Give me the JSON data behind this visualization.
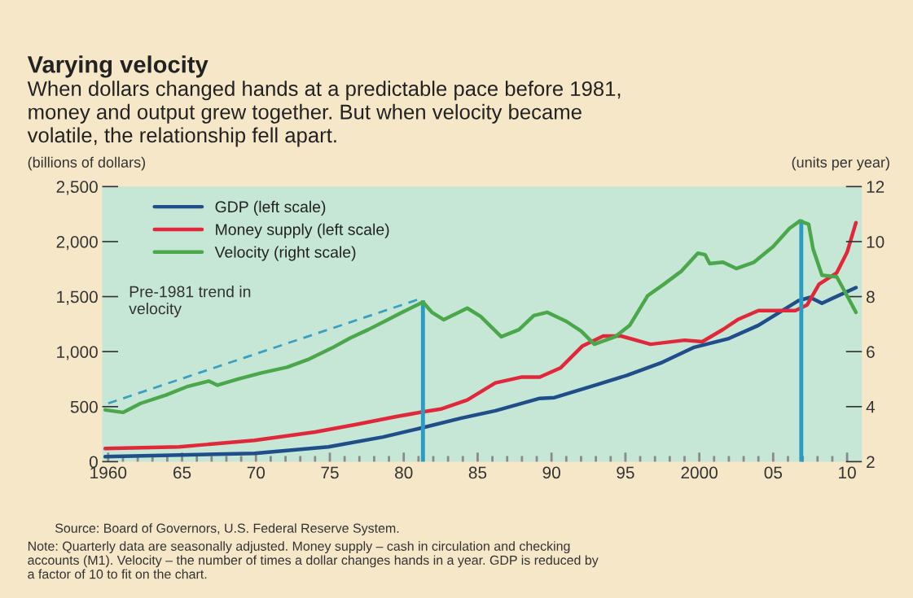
{
  "chart_data": {
    "type": "line",
    "title": "Varying velocity",
    "subtitle": "When dollars changed hands at a predictable pace before 1981,\nmoney and output grew together. But when velocity became\nvolatile, the relationship fell apart.",
    "ylabel": "(billions of dollars)",
    "y2label": "(units per year)",
    "series": [
      {
        "name": "GDP (left scale)",
        "color": "#1f4e8a",
        "x": [
          1959.8,
          1969.9,
          1974.9,
          1978.6,
          1981.2,
          1983.9,
          1986.2,
          1989.2,
          1990.2,
          1993.1,
          1995.1,
          1997.5,
          1999.6,
          2002.0,
          2004.0,
          2006.7,
          2007.5,
          2008.3,
          2010.6
        ],
        "values": [
          45,
          75,
          134,
          224,
          306,
          396,
          463,
          575,
          582,
          701,
          784,
          903,
          1037,
          1119,
          1239,
          1463,
          1493,
          1440,
          1582
        ]
      },
      {
        "name": "Money supply (left scale)",
        "color": "#e0283a",
        "x": [
          1959.8,
          1964.8,
          1969.9,
          1974.0,
          1976.7,
          1979.5,
          1981.2,
          1982.5,
          1984.3,
          1986.2,
          1988.0,
          1989.2,
          1990.6,
          1992.1,
          1993.5,
          1994.7,
          1996.7,
          1999.0,
          2000.2,
          2001.6,
          2002.6,
          2004.0,
          2006.5,
          2007.3,
          2008.1,
          2009.3,
          2010.0,
          2010.6
        ],
        "values": [
          119,
          134,
          194,
          269,
          336,
          410,
          450,
          478,
          560,
          716,
          769,
          769,
          851,
          1052,
          1142,
          1142,
          1067,
          1104,
          1090,
          1201,
          1291,
          1373,
          1373,
          1425,
          1612,
          1716,
          1903,
          2172
        ]
      },
      {
        "name": "Velocity (right scale)",
        "color": "#4aa84a",
        "axis": "y2",
        "x": [
          1959.8,
          1961.0,
          1962.2,
          1963.9,
          1965.3,
          1966.8,
          1967.4,
          1968.8,
          1970.3,
          1972.1,
          1973.6,
          1975.1,
          1976.4,
          1977.6,
          1978.7,
          1979.8,
          1980.8,
          1981.3,
          1981.9,
          1982.7,
          1984.3,
          1985.2,
          1986.6,
          1987.8,
          1988.8,
          1989.7,
          1991.0,
          1992.0,
          1992.9,
          1994.3,
          1995.3,
          1996.5,
          1997.6,
          1998.8,
          1999.9,
          2000.4,
          2000.7,
          2001.6,
          2002.5,
          2003.7,
          2005.0,
          2006.1,
          2006.8,
          2007.4,
          2007.7,
          2008.3,
          2009.3,
          2010.0,
          2010.6
        ],
        "values": [
          3.88,
          3.79,
          4.12,
          4.42,
          4.72,
          4.93,
          4.78,
          5.0,
          5.22,
          5.43,
          5.73,
          6.12,
          6.5,
          6.8,
          7.1,
          7.4,
          7.67,
          7.8,
          7.43,
          7.16,
          7.58,
          7.28,
          6.54,
          6.8,
          7.31,
          7.43,
          7.1,
          6.75,
          6.27,
          6.54,
          6.96,
          8.03,
          8.45,
          8.93,
          9.58,
          9.52,
          9.2,
          9.25,
          9.02,
          9.25,
          9.82,
          10.48,
          10.75,
          10.63,
          9.73,
          8.78,
          8.72,
          8.03,
          7.43
        ]
      },
      {
        "type": "line",
        "color": "#3a9fc0",
        "axis": "y2",
        "line_style": "dashed",
        "x": [
          1960,
          1981
        ],
        "values": [
          4.12,
          7.9
        ]
      }
    ],
    "ref_lines": [
      {
        "axis": "x",
        "value": 1981.3,
        "color": "#2a9bc4"
      },
      {
        "axis": "x",
        "value": 2006.9,
        "color": "#2a9bc4"
      }
    ],
    "xlim": [
      1959.6,
      2011
    ],
    "xticks": [
      {
        "value": 1960,
        "label": "1960"
      },
      {
        "value": 1961,
        "label": null
      },
      {
        "value": 1962,
        "label": null
      },
      {
        "value": 1963,
        "label": null
      },
      {
        "value": 1964,
        "label": null
      },
      {
        "value": 1965,
        "label": "65"
      },
      {
        "value": 1966,
        "label": null
      },
      {
        "value": 1967,
        "label": null
      },
      {
        "value": 1968,
        "label": null
      },
      {
        "value": 1969,
        "label": null
      },
      {
        "value": 1970,
        "label": "70"
      },
      {
        "value": 1971,
        "label": null
      },
      {
        "value": 1972,
        "label": null
      },
      {
        "value": 1973,
        "label": null
      },
      {
        "value": 1974,
        "label": null
      },
      {
        "value": 1975,
        "label": "75"
      },
      {
        "value": 1976,
        "label": null
      },
      {
        "value": 1977,
        "label": null
      },
      {
        "value": 1978,
        "label": null
      },
      {
        "value": 1979,
        "label": null
      },
      {
        "value": 1980,
        "label": "80"
      },
      {
        "value": 1981,
        "label": null
      },
      {
        "value": 1982,
        "label": null
      },
      {
        "value": 1983,
        "label": null
      },
      {
        "value": 1984,
        "label": null
      },
      {
        "value": 1985,
        "label": "85"
      },
      {
        "value": 1986,
        "label": null
      },
      {
        "value": 1987,
        "label": null
      },
      {
        "value": 1988,
        "label": null
      },
      {
        "value": 1989,
        "label": null
      },
      {
        "value": 1990,
        "label": "90"
      },
      {
        "value": 1991,
        "label": null
      },
      {
        "value": 1992,
        "label": null
      },
      {
        "value": 1993,
        "label": null
      },
      {
        "value": 1994,
        "label": null
      },
      {
        "value": 1995,
        "label": "95"
      },
      {
        "value": 1996,
        "label": null
      },
      {
        "value": 1997,
        "label": null
      },
      {
        "value": 1998,
        "label": null
      },
      {
        "value": 1999,
        "label": null
      },
      {
        "value": 2000,
        "label": "2000"
      },
      {
        "value": 2001,
        "label": null
      },
      {
        "value": 2002,
        "label": null
      },
      {
        "value": 2003,
        "label": null
      },
      {
        "value": 2004,
        "label": null
      },
      {
        "value": 2005,
        "label": "05"
      },
      {
        "value": 2006,
        "label": null
      },
      {
        "value": 2007,
        "label": null
      },
      {
        "value": 2008,
        "label": null
      },
      {
        "value": 2009,
        "label": null
      },
      {
        "value": 2010,
        "label": "10"
      }
    ],
    "ylim": [
      0,
      2500
    ],
    "yticks": [
      0,
      500,
      {
        "value": 1000,
        "label": "1,000"
      },
      {
        "value": 1500,
        "label": "1,500"
      },
      {
        "value": 2000,
        "label": "2,000"
      },
      {
        "value": 2500,
        "label": "2,500"
      }
    ],
    "y2lim": [
      2,
      12
    ],
    "y2ticks": [
      2,
      4,
      6,
      8,
      10,
      12
    ],
    "grid": false,
    "legend": "top left",
    "line_style": "solid",
    "marker": "none",
    "annotations": [
      "Pre-1981 trend in\nvelocity",
      "Source: Board of Governors, U.S. Federal Reserve System.",
      "Note: Quarterly data are seasonally adjusted. Money supply – cash in circulation and checking\naccounts (M1). Velocity – the number of times a dollar changes hands in a year. GDP is reduced by\na factor of 10 to fit on the chart."
    ]
  }
}
